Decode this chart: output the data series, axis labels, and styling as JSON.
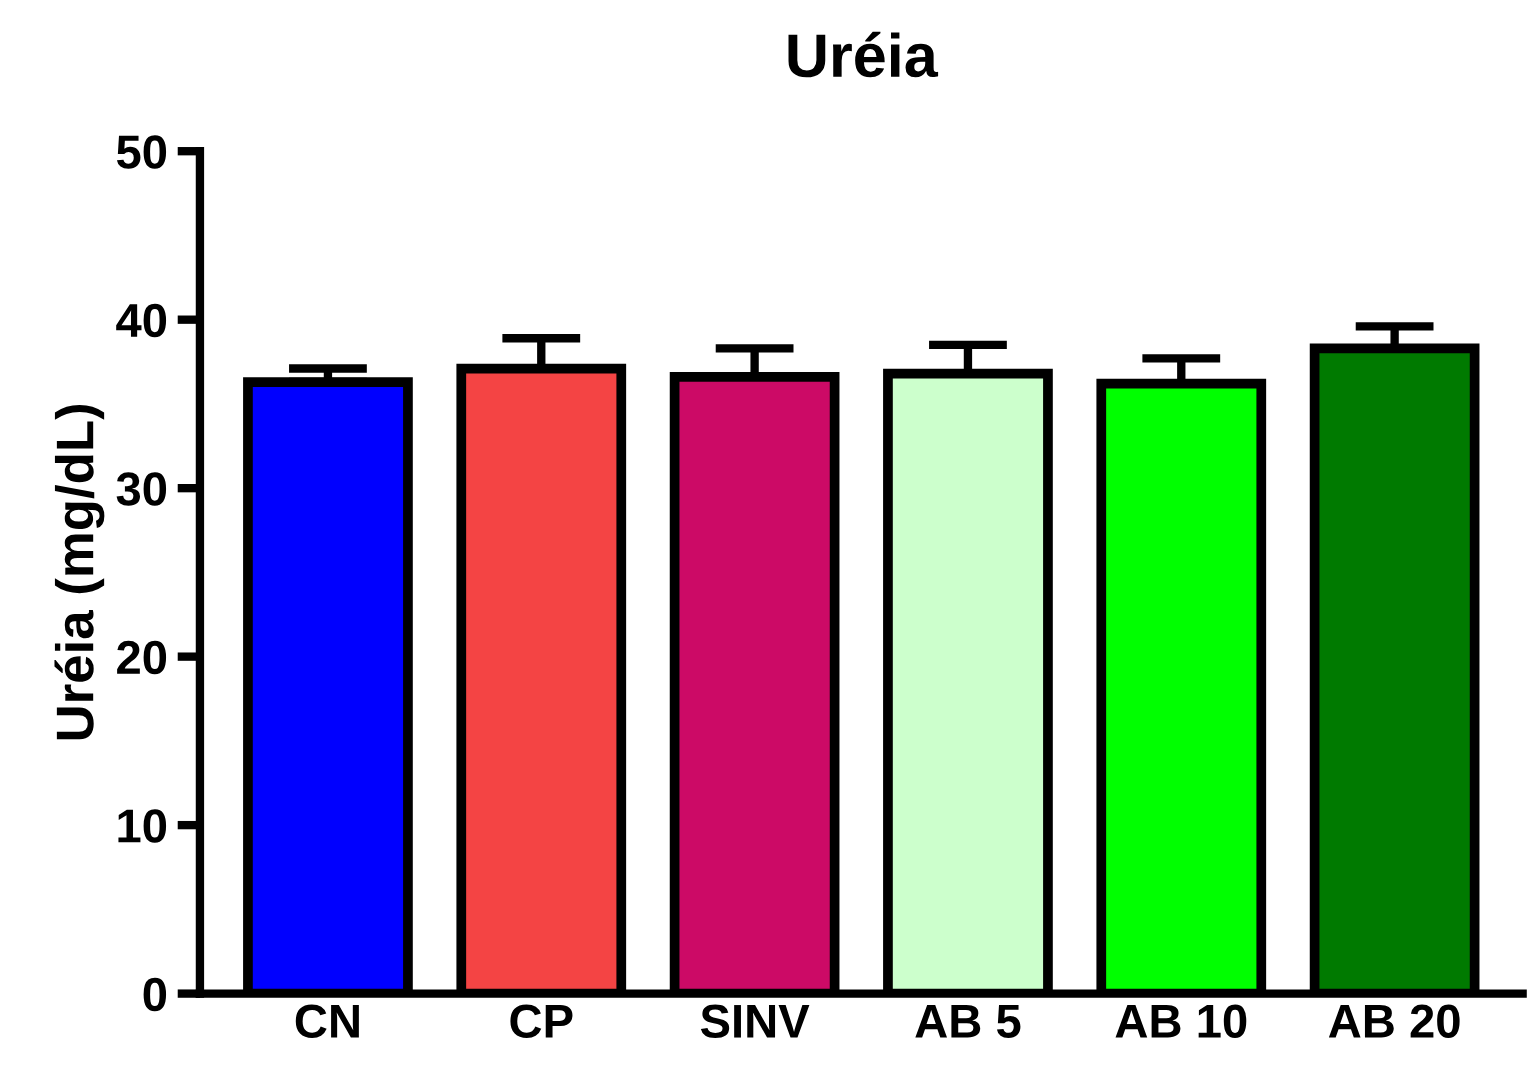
{
  "chart_data": {
    "type": "bar",
    "title": "Uréia",
    "ylabel": "Uréia (mg/dL)",
    "categories": [
      "CN",
      "CP",
      "SINV",
      "AB 5",
      "AB 10",
      "AB 20"
    ],
    "values": [
      36.3,
      37.1,
      36.6,
      36.8,
      36.2,
      38.3
    ],
    "errors": [
      0.8,
      1.8,
      1.7,
      1.7,
      1.5,
      1.3
    ],
    "colors": [
      "#0000ff",
      "#f44444",
      "#cc0a66",
      "#ccffcc",
      "#00ff00",
      "#007a00"
    ],
    "ylim": [
      0,
      50
    ],
    "yticks": [
      0,
      10,
      20,
      30,
      40,
      50
    ],
    "grid": false
  }
}
